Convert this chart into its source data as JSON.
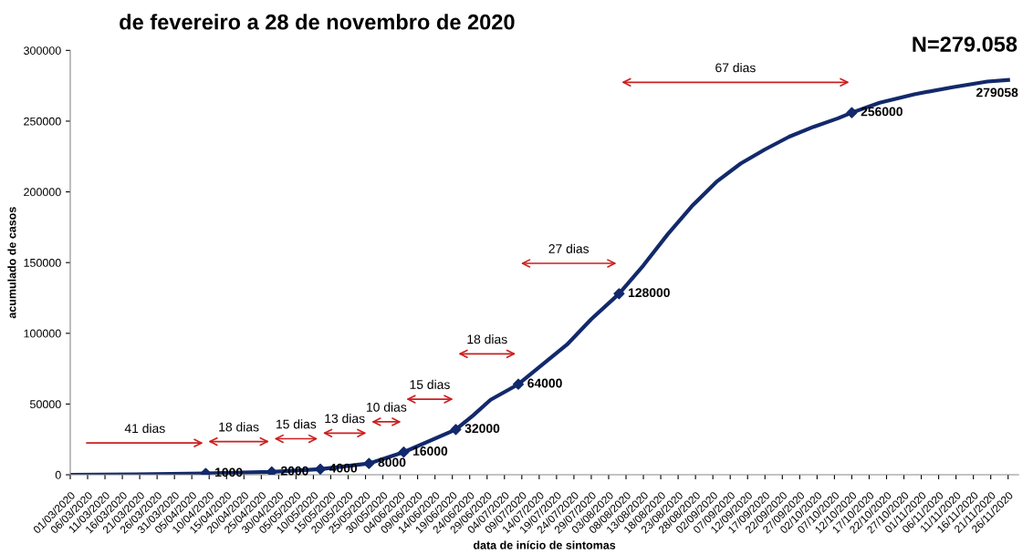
{
  "chart_data": {
    "type": "line",
    "title": "de fevereiro a 28 de novembro de 2020",
    "subtitle": "N=279.058",
    "xlabel": "data de início de sintomas",
    "ylabel": "acumulado de casos",
    "xlim": [
      "2020-03-01",
      "2020-11-29"
    ],
    "ylim": [
      0,
      300000
    ],
    "yticks": [
      0,
      50000,
      100000,
      150000,
      200000,
      250000,
      300000
    ],
    "xticks": [
      {
        "value": "2020-03-01",
        "label": "01/03/2020"
      },
      {
        "value": "2020-03-06",
        "label": "06/03/2020"
      },
      {
        "value": "2020-03-11",
        "label": "11/03/2020"
      },
      {
        "value": "2020-03-16",
        "label": "16/03/2020"
      },
      {
        "value": "2020-03-21",
        "label": "21/03/2020"
      },
      {
        "value": "2020-03-26",
        "label": "26/03/2020"
      },
      {
        "value": "2020-03-31",
        "label": "31/03/2020"
      },
      {
        "value": "2020-04-05",
        "label": "05/04/2020"
      },
      {
        "value": "2020-04-10",
        "label": "10/04/2020"
      },
      {
        "value": "2020-04-15",
        "label": "15/04/2020"
      },
      {
        "value": "2020-04-20",
        "label": "20/04/2020"
      },
      {
        "value": "2020-04-25",
        "label": "25/04/2020"
      },
      {
        "value": "2020-04-30",
        "label": "30/04/2020"
      },
      {
        "value": "2020-05-05",
        "label": "05/05/2020"
      },
      {
        "value": "2020-05-10",
        "label": "10/05/2020"
      },
      {
        "value": "2020-05-15",
        "label": "15/05/2020"
      },
      {
        "value": "2020-05-20",
        "label": "20/05/2020"
      },
      {
        "value": "2020-05-25",
        "label": "25/05/2020"
      },
      {
        "value": "2020-05-30",
        "label": "30/05/2020"
      },
      {
        "value": "2020-06-04",
        "label": "04/06/2020"
      },
      {
        "value": "2020-06-09",
        "label": "09/06/2020"
      },
      {
        "value": "2020-06-14",
        "label": "14/06/2020"
      },
      {
        "value": "2020-06-19",
        "label": "19/06/2020"
      },
      {
        "value": "2020-06-24",
        "label": "24/06/2020"
      },
      {
        "value": "2020-06-29",
        "label": "29/06/2020"
      },
      {
        "value": "2020-07-04",
        "label": "04/07/2020"
      },
      {
        "value": "2020-07-09",
        "label": "09/07/2020"
      },
      {
        "value": "2020-07-14",
        "label": "14/07/2020"
      },
      {
        "value": "2020-07-19",
        "label": "19/07/2020"
      },
      {
        "value": "2020-07-24",
        "label": "24/07/2020"
      },
      {
        "value": "2020-07-29",
        "label": "29/07/2020"
      },
      {
        "value": "2020-08-03",
        "label": "03/08/2020"
      },
      {
        "value": "2020-08-08",
        "label": "08/08/2020"
      },
      {
        "value": "2020-08-13",
        "label": "13/08/2020"
      },
      {
        "value": "2020-08-18",
        "label": "18/08/2020"
      },
      {
        "value": "2020-08-23",
        "label": "23/08/2020"
      },
      {
        "value": "2020-08-28",
        "label": "28/08/2020"
      },
      {
        "value": "2020-09-02",
        "label": "02/09/2020"
      },
      {
        "value": "2020-09-07",
        "label": "07/09/2020"
      },
      {
        "value": "2020-09-12",
        "label": "12/09/2020"
      },
      {
        "value": "2020-09-17",
        "label": "17/09/2020"
      },
      {
        "value": "2020-09-22",
        "label": "22/09/2020"
      },
      {
        "value": "2020-09-27",
        "label": "27/09/2020"
      },
      {
        "value": "2020-10-02",
        "label": "02/10/2020"
      },
      {
        "value": "2020-10-07",
        "label": "07/10/2020"
      },
      {
        "value": "2020-10-12",
        "label": "12/10/2020"
      },
      {
        "value": "2020-10-17",
        "label": "17/10/2020"
      },
      {
        "value": "2020-10-22",
        "label": "22/10/2020"
      },
      {
        "value": "2020-10-27",
        "label": "27/10/2020"
      },
      {
        "value": "2020-11-01",
        "label": "01/11/2020"
      },
      {
        "value": "2020-11-06",
        "label": "06/11/2020"
      },
      {
        "value": "2020-11-11",
        "label": "11/11/2020"
      },
      {
        "value": "2020-11-16",
        "label": "16/11/2020"
      },
      {
        "value": "2020-11-21",
        "label": "21/11/2020"
      },
      {
        "value": "2020-11-26",
        "label": "26/11/2020"
      }
    ],
    "grid": false,
    "legend": false,
    "line_style": "solid",
    "series": [
      {
        "color": "#12296b",
        "marker": "none",
        "x": [
          "2020-03-01",
          "2020-03-20",
          "2020-04-09",
          "2020-04-28",
          "2020-05-12",
          "2020-05-26",
          "2020-06-05",
          "2020-06-20",
          "2020-06-25",
          "2020-06-30",
          "2020-07-08",
          "2020-07-15",
          "2020-07-22",
          "2020-07-29",
          "2020-08-06",
          "2020-08-13",
          "2020-08-20",
          "2020-08-27",
          "2020-09-03",
          "2020-09-10",
          "2020-09-17",
          "2020-09-24",
          "2020-10-01",
          "2020-10-08",
          "2020-10-12",
          "2020-10-20",
          "2020-10-30",
          "2020-11-10",
          "2020-11-20",
          "2020-11-26"
        ],
        "values": [
          0,
          300,
          1000,
          2000,
          4000,
          8000,
          16000,
          32000,
          42000,
          53000,
          64000,
          78000,
          92000,
          110000,
          128000,
          148000,
          170000,
          190000,
          207000,
          220000,
          230000,
          239000,
          246000,
          252000,
          256000,
          263000,
          269000,
          274000,
          278000,
          279058
        ],
        "value_labels": [
          null,
          null,
          null,
          null,
          null,
          null,
          null,
          null,
          null,
          null,
          null,
          null,
          null,
          null,
          null,
          null,
          null,
          null,
          null,
          null,
          null,
          null,
          null,
          null,
          null,
          null,
          null,
          null,
          null,
          "279058"
        ]
      },
      {
        "type": "scatter",
        "color": "#12296b",
        "marker": "diamond",
        "x": [
          "2020-04-09",
          "2020-04-28",
          "2020-05-12",
          "2020-05-26",
          "2020-06-05",
          "2020-06-20",
          "2020-07-08",
          "2020-08-06",
          "2020-10-12"
        ],
        "values": [
          1000,
          2000,
          4000,
          8000,
          16000,
          32000,
          64000,
          128000,
          256000
        ],
        "value_labels": [
          "1000",
          "2000",
          "4000",
          "8000",
          "16000",
          "32000",
          "64000",
          "128000",
          "256000"
        ]
      }
    ],
    "annotations": [
      "41 dias",
      "18 dias",
      "15 dias",
      "13 dias",
      "10 dias",
      "15 dias",
      "18 dias",
      "27 dias",
      "67 dias"
    ]
  }
}
